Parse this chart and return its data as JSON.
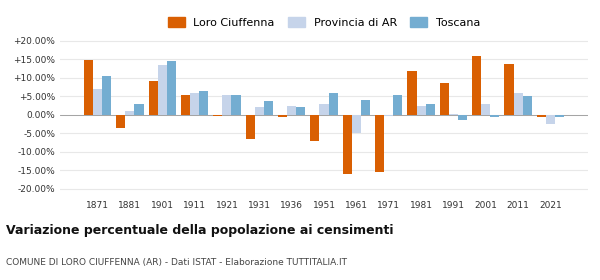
{
  "years": [
    1871,
    1881,
    1901,
    1911,
    1921,
    1931,
    1936,
    1951,
    1961,
    1971,
    1981,
    1991,
    2001,
    2011,
    2021
  ],
  "loro_ciuffenna": [
    14.8,
    -3.5,
    9.2,
    5.3,
    -0.3,
    -6.5,
    -0.5,
    -7.2,
    -16.0,
    -15.5,
    12.0,
    8.7,
    16.0,
    13.8,
    -0.5
  ],
  "provincia_ar": [
    7.0,
    1.0,
    13.5,
    6.0,
    5.5,
    2.0,
    2.5,
    3.0,
    -5.0,
    -0.3,
    2.5,
    0.2,
    3.0,
    6.0,
    -2.5
  ],
  "toscana": [
    10.5,
    3.0,
    14.5,
    6.5,
    5.3,
    3.7,
    2.0,
    6.0,
    4.0,
    5.5,
    3.0,
    -1.5,
    -0.5,
    5.0,
    -0.5
  ],
  "loro_color": "#d95f02",
  "provincia_color": "#c6d4ea",
  "toscana_color": "#74add1",
  "grid_color": "#e8e8e8",
  "title": "Variazione percentuale della popolazione ai censimenti",
  "subtitle": "COMUNE DI LORO CIUFFENNA (AR) - Dati ISTAT - Elaborazione TUTTITALIA.IT",
  "ylim": [
    -22,
    22
  ],
  "yticks": [
    -20,
    -15,
    -10,
    -5,
    0,
    5,
    10,
    15,
    20
  ],
  "bar_width": 0.28
}
